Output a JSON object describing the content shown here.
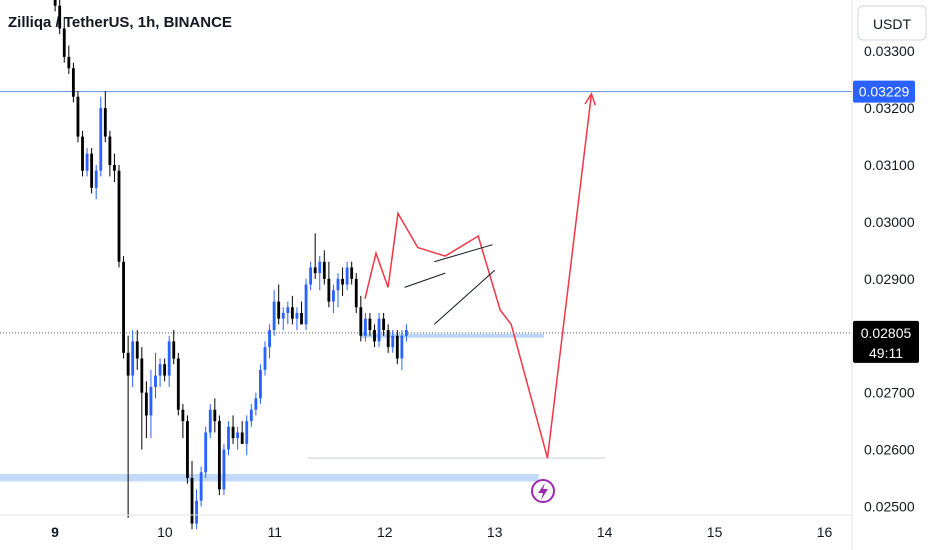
{
  "chart_data": {
    "type": "candlestick",
    "title": "Zilliqa / TetherUS, 1h, BINANCE",
    "currency": "USDT",
    "y_ticks": [
      0.025,
      0.026,
      0.027,
      0.028,
      0.029,
      0.03,
      0.031,
      0.032,
      0.033
    ],
    "y_tick_labels": [
      "0.02500",
      "0.02600",
      "0.02700",
      "0.02800",
      "0.02900",
      "0.03000",
      "0.03100",
      "0.03200",
      "0.03300"
    ],
    "x_tick_labels": [
      "9",
      "10",
      "11",
      "12",
      "13",
      "14",
      "15",
      "16"
    ],
    "ylim": [
      0.02485,
      0.0339
    ],
    "xlim": [
      8.5,
      16.25
    ],
    "current_price": "0.02805",
    "countdown": "49:11",
    "target_level": {
      "value": 0.03229,
      "label": "0.03229"
    },
    "colors": {
      "up": "#2962ff",
      "down": "#000000",
      "projection": "#f23645",
      "level": "#5b8fd9",
      "zone": "#bcd6f8",
      "wedge": "#131722"
    },
    "candle_start_day": 8.96,
    "candle_step_days": 0.0415,
    "candles": [
      [
        0.0343,
        0.0344,
        0.0341,
        0.0342
      ],
      [
        0.0342,
        0.0343,
        0.0337,
        0.0338
      ],
      [
        0.0338,
        0.0339,
        0.0333,
        0.0334
      ],
      [
        0.0334,
        0.0336,
        0.0328,
        0.0329
      ],
      [
        0.0329,
        0.0331,
        0.0326,
        0.0327
      ],
      [
        0.0327,
        0.0328,
        0.0321,
        0.0322
      ],
      [
        0.0322,
        0.0323,
        0.0314,
        0.0315
      ],
      [
        0.0315,
        0.0316,
        0.0308,
        0.0309
      ],
      [
        0.0309,
        0.0313,
        0.0308,
        0.0312
      ],
      [
        0.0312,
        0.0313,
        0.0305,
        0.0306
      ],
      [
        0.0306,
        0.031,
        0.0304,
        0.0309
      ],
      [
        0.0309,
        0.0322,
        0.0308,
        0.032
      ],
      [
        0.032,
        0.0323,
        0.0314,
        0.0315
      ],
      [
        0.0315,
        0.0316,
        0.0308,
        0.031
      ],
      [
        0.031,
        0.0312,
        0.0307,
        0.0309
      ],
      [
        0.0309,
        0.031,
        0.0292,
        0.0293
      ],
      [
        0.0293,
        0.0294,
        0.0276,
        0.0277
      ],
      [
        0.0277,
        0.028,
        0.0248,
        0.0273
      ],
      [
        0.0273,
        0.0281,
        0.0271,
        0.0279
      ],
      [
        0.0279,
        0.0281,
        0.0274,
        0.0276
      ],
      [
        0.0276,
        0.0278,
        0.026,
        0.027
      ],
      [
        0.027,
        0.0272,
        0.0262,
        0.0266
      ],
      [
        0.0266,
        0.0274,
        0.0262,
        0.0271
      ],
      [
        0.0271,
        0.0277,
        0.0269,
        0.0273
      ],
      [
        0.0273,
        0.0276,
        0.0271,
        0.0275
      ],
      [
        0.0275,
        0.0276,
        0.0272,
        0.0273
      ],
      [
        0.0273,
        0.028,
        0.0271,
        0.0279
      ],
      [
        0.0279,
        0.0281,
        0.0275,
        0.0276
      ],
      [
        0.0276,
        0.0277,
        0.0266,
        0.0267
      ],
      [
        0.0267,
        0.0268,
        0.0262,
        0.0265
      ],
      [
        0.0265,
        0.0266,
        0.0254,
        0.0255
      ],
      [
        0.0255,
        0.0258,
        0.0246,
        0.0247
      ],
      [
        0.0247,
        0.0253,
        0.0246,
        0.0251
      ],
      [
        0.0251,
        0.0257,
        0.025,
        0.0256
      ],
      [
        0.0256,
        0.0264,
        0.0255,
        0.0263
      ],
      [
        0.0263,
        0.0268,
        0.0262,
        0.0267
      ],
      [
        0.0267,
        0.0269,
        0.0263,
        0.0265
      ],
      [
        0.0265,
        0.0266,
        0.0252,
        0.0253
      ],
      [
        0.0253,
        0.0261,
        0.0252,
        0.026
      ],
      [
        0.026,
        0.0265,
        0.0259,
        0.0264
      ],
      [
        0.0264,
        0.0266,
        0.0261,
        0.0262
      ],
      [
        0.0262,
        0.0264,
        0.026,
        0.0263
      ],
      [
        0.0263,
        0.0265,
        0.0261,
        0.0261
      ],
      [
        0.0261,
        0.0266,
        0.0259,
        0.0265
      ],
      [
        0.0265,
        0.0268,
        0.0264,
        0.0267
      ],
      [
        0.0267,
        0.027,
        0.0266,
        0.0269
      ],
      [
        0.0269,
        0.0275,
        0.0268,
        0.0274
      ],
      [
        0.0274,
        0.0279,
        0.0273,
        0.0278
      ],
      [
        0.0278,
        0.0282,
        0.0276,
        0.0281
      ],
      [
        0.0281,
        0.0288,
        0.028,
        0.0286
      ],
      [
        0.0286,
        0.0289,
        0.0282,
        0.0283
      ],
      [
        0.0283,
        0.0285,
        0.0281,
        0.0284
      ],
      [
        0.0284,
        0.0286,
        0.0282,
        0.0285
      ],
      [
        0.0285,
        0.0287,
        0.0282,
        0.0283
      ],
      [
        0.0283,
        0.0285,
        0.0281,
        0.0284
      ],
      [
        0.0284,
        0.0286,
        0.0282,
        0.0282
      ],
      [
        0.0282,
        0.029,
        0.0281,
        0.0289
      ],
      [
        0.0289,
        0.0293,
        0.0288,
        0.0292
      ],
      [
        0.0292,
        0.0298,
        0.029,
        0.0291
      ],
      [
        0.0291,
        0.0294,
        0.0288,
        0.0293
      ],
      [
        0.0293,
        0.0295,
        0.0289,
        0.029
      ],
      [
        0.029,
        0.0293,
        0.0285,
        0.0286
      ],
      [
        0.0286,
        0.0289,
        0.0284,
        0.0288
      ],
      [
        0.0288,
        0.0291,
        0.0285,
        0.029
      ],
      [
        0.029,
        0.0292,
        0.0287,
        0.0289
      ],
      [
        0.0289,
        0.0293,
        0.0288,
        0.0292
      ],
      [
        0.0292,
        0.0293,
        0.0289,
        0.029
      ],
      [
        0.029,
        0.0291,
        0.0284,
        0.0285
      ],
      [
        0.0285,
        0.0287,
        0.0279,
        0.028
      ],
      [
        0.028,
        0.0284,
        0.0279,
        0.0283
      ],
      [
        0.0283,
        0.0284,
        0.028,
        0.0281
      ],
      [
        0.0281,
        0.0282,
        0.0278,
        0.0279
      ],
      [
        0.0279,
        0.0284,
        0.0278,
        0.0283
      ],
      [
        0.0283,
        0.0284,
        0.028,
        0.0281
      ],
      [
        0.0281,
        0.0282,
        0.0277,
        0.0278
      ],
      [
        0.0278,
        0.0281,
        0.0277,
        0.028
      ],
      [
        0.028,
        0.0281,
        0.0275,
        0.0276
      ],
      [
        0.0276,
        0.0281,
        0.0274,
        0.028
      ],
      [
        0.028,
        0.0282,
        0.0279,
        0.0281
      ]
    ],
    "drawings": {
      "projection_path": [
        [
          11.82,
          0.02865
        ],
        [
          11.92,
          0.02945
        ],
        [
          12.03,
          0.02885
        ],
        [
          12.12,
          0.03015
        ],
        [
          12.3,
          0.02955
        ],
        [
          12.55,
          0.0294
        ],
        [
          12.85,
          0.02975
        ],
        [
          13.05,
          0.02845
        ],
        [
          13.15,
          0.0282
        ],
        [
          13.48,
          0.02585
        ],
        [
          13.88,
          0.03225
        ]
      ],
      "wedge_lines": [
        [
          [
            12.18,
            0.02885
          ],
          [
            12.55,
            0.0291
          ]
        ],
        [
          [
            12.45,
            0.0293
          ],
          [
            12.98,
            0.0296
          ]
        ],
        [
          [
            12.45,
            0.0282
          ],
          [
            13.0,
            0.02915
          ]
        ]
      ],
      "resistance_support_line": {
        "x1": 11.78,
        "x2": 13.45,
        "value": 0.028
      },
      "low_line": {
        "x1": 11.3,
        "x2": 14.0,
        "value": 0.02585
      },
      "demand_zone": {
        "x1": 8.5,
        "x2": 13.4,
        "y1": 0.02544,
        "y2": 0.02557
      }
    }
  }
}
